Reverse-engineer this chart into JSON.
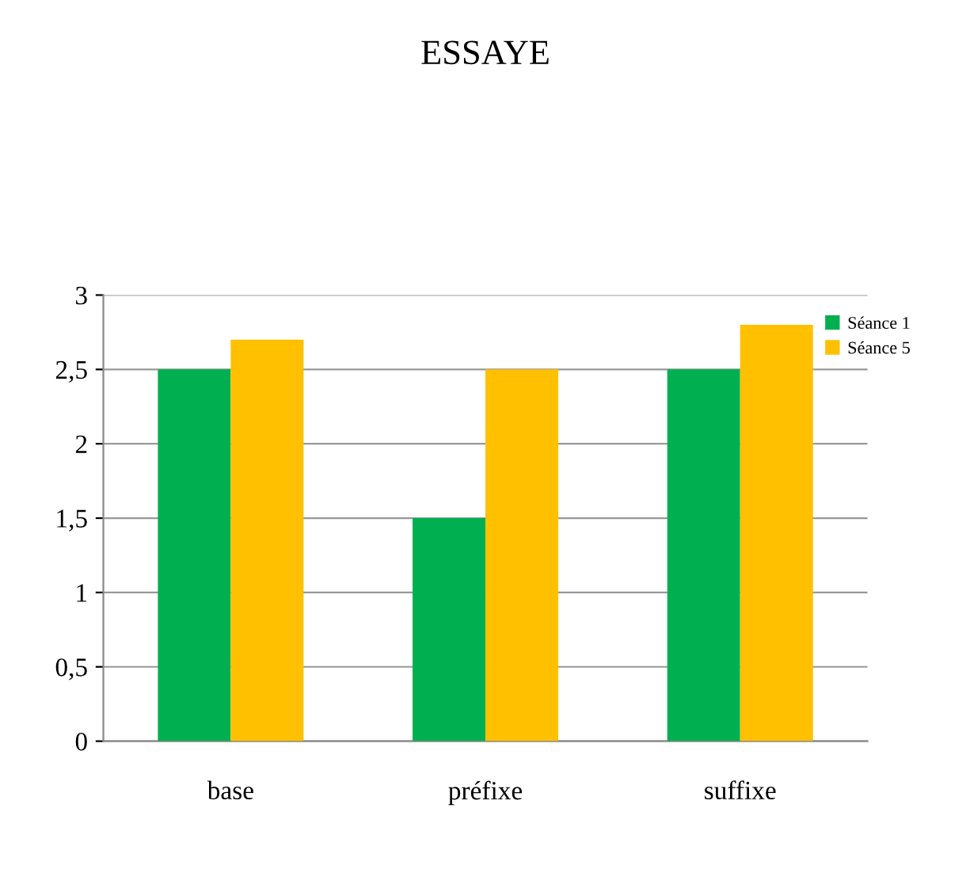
{
  "chart_data": {
    "type": "bar",
    "title": "ESSAYE",
    "categories": [
      "base",
      "préfixe",
      "suffixe"
    ],
    "series": [
      {
        "name": "Séance 1",
        "color": "#00b050",
        "values": [
          2.5,
          1.5,
          2.5
        ]
      },
      {
        "name": "Séance 5",
        "color": "#ffc000",
        "values": [
          2.7,
          2.5,
          2.8
        ]
      }
    ],
    "ylim": [
      0,
      3
    ],
    "yticks": [
      0,
      {
        "value": 0.5,
        "label": "0,5"
      },
      1,
      {
        "value": 1.5,
        "label": "1,5"
      },
      2,
      {
        "value": 2.5,
        "label": "2,5"
      },
      3
    ],
    "grid": "y",
    "legend": "top right"
  }
}
